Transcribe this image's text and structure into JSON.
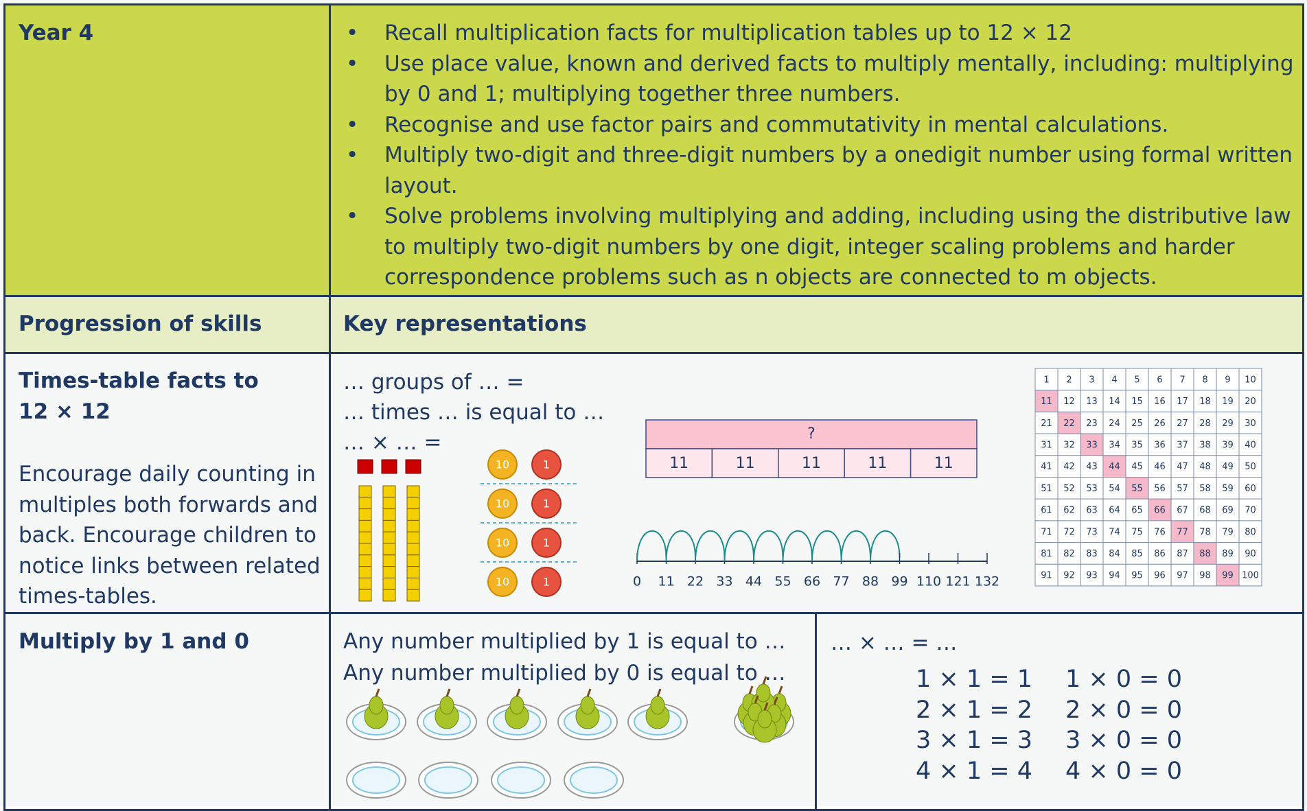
{
  "header": {
    "label": "Year 4",
    "bullets": [
      "Recall multiplication facts for multiplication tables up to 12 × 12",
      "Use place value, known and derived facts to multiply mentally, including: multiplying by 0 and 1; multiplying together three numbers.",
      "Recognise and use factor pairs and commutativity in mental calculations.",
      "Multiply two-digit and three-digit numbers by a onedigit number using formal written layout.",
      "Solve problems involving multiplying and adding, including using the distributive law to multiply two-digit numbers by one digit, integer scaling problems and harder correspondence problems such as n objects are connected to m objects."
    ]
  },
  "subheader": {
    "left": "Progression of skills",
    "right": "Key representations"
  },
  "rows": [
    {
      "title": [
        "Times-table facts to",
        "12 × 12"
      ],
      "note": "Encourage daily counting in multiples both forwards and back. Encourage children to notice links between related times-tables.",
      "phrases": [
        "… groups of … =",
        "… times … is equal to …",
        "… × … ="
      ],
      "counters": [
        "10",
        "1"
      ],
      "bar_model": {
        "total": "?",
        "parts": [
          "11",
          "11",
          "11",
          "11",
          "11"
        ]
      },
      "number_line": [
        0,
        11,
        22,
        33,
        44,
        55,
        66,
        77,
        88,
        99,
        110,
        121,
        132
      ],
      "hundred_square": [
        1,
        2,
        3,
        4,
        5,
        6,
        7,
        8,
        9,
        10,
        11,
        12,
        13,
        14,
        15,
        16,
        17,
        18,
        19,
        20,
        21,
        22,
        23,
        24,
        25,
        26,
        27,
        28,
        29,
        30,
        31,
        32,
        33,
        34,
        35,
        36,
        37,
        38,
        39,
        40,
        41,
        42,
        43,
        44,
        45,
        46,
        47,
        48,
        49,
        50,
        51,
        52,
        53,
        54,
        55,
        56,
        57,
        58,
        59,
        60,
        61,
        62,
        63,
        64,
        65,
        66,
        67,
        68,
        69,
        70,
        71,
        72,
        73,
        74,
        75,
        76,
        77,
        78,
        79,
        80,
        81,
        82,
        83,
        84,
        85,
        86,
        87,
        88,
        89,
        90,
        91,
        92,
        93,
        94,
        95,
        96,
        97,
        98,
        99,
        100
      ],
      "highlighted": [
        11,
        22,
        33,
        44,
        55,
        66,
        77,
        88,
        99
      ],
      "highlight_color": "#f5b9c9"
    },
    {
      "title": "Multiply by 1 and 0",
      "phrases": [
        "Any number multiplied by 1 is equal to …",
        "Any number multiplied by 0 is equal to …"
      ],
      "equations_label": "… × … = …",
      "equations_1": [
        "1 × 1 = 1",
        "2 × 1 = 2",
        "3 × 1 = 3",
        "4 × 1 = 4"
      ],
      "equations_0": [
        "1 × 0 = 0",
        "2 × 0 = 0",
        "3 × 0 = 0",
        "4 × 0 = 0"
      ]
    }
  ]
}
